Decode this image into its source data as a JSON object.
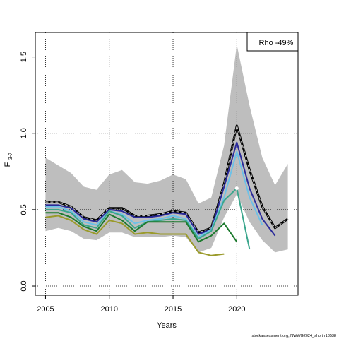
{
  "chart_data": {
    "type": "line",
    "xlabel": "Years",
    "ylabel_main": "F",
    "ylabel_sub": "3-7",
    "xlim": [
      2004.2,
      2024.8
    ],
    "ylim": [
      -0.06,
      1.66
    ],
    "xticks": [
      2005,
      2010,
      2015,
      2020
    ],
    "yticks": [
      0.0,
      0.5,
      1.0,
      1.5
    ],
    "ytick_labels": [
      "0.0",
      "0.5",
      "1.0",
      "1.5"
    ],
    "grid": true,
    "legend_text": "Rho -49%",
    "legend_position": "top-right",
    "footer": "stockassessment.org, NWWG2024_short r18538",
    "band": {
      "x": [
        2005,
        2006,
        2007,
        2008,
        2009,
        2010,
        2011,
        2012,
        2013,
        2014,
        2015,
        2016,
        2017,
        2018,
        2019,
        2020,
        2021,
        2022,
        2023,
        2024
      ],
      "upper": [
        0.84,
        0.79,
        0.74,
        0.65,
        0.63,
        0.73,
        0.76,
        0.68,
        0.67,
        0.69,
        0.73,
        0.7,
        0.54,
        0.58,
        0.92,
        1.58,
        1.18,
        0.84,
        0.66,
        0.8
      ],
      "lower": [
        0.36,
        0.38,
        0.36,
        0.31,
        0.3,
        0.35,
        0.35,
        0.32,
        0.32,
        0.32,
        0.33,
        0.32,
        0.22,
        0.25,
        0.45,
        0.6,
        0.42,
        0.3,
        0.22,
        0.24
      ],
      "color": "#bebebe"
    },
    "series": [
      {
        "color": "#000000",
        "width": 3,
        "x": [
          2005,
          2006,
          2007,
          2008,
          2009,
          2010,
          2011,
          2012,
          2013,
          2014,
          2015,
          2016,
          2017,
          2018,
          2019,
          2020,
          2021,
          2022,
          2023,
          2024
        ],
        "values": [
          0.55,
          0.55,
          0.52,
          0.45,
          0.43,
          0.51,
          0.51,
          0.46,
          0.46,
          0.47,
          0.49,
          0.48,
          0.35,
          0.38,
          0.67,
          1.05,
          0.76,
          0.52,
          0.38,
          0.44
        ]
      },
      {
        "color": "#bdbdbd",
        "width": 1.2,
        "dash": "4,3",
        "x": [
          2005,
          2006,
          2007,
          2008,
          2009,
          2010,
          2011,
          2012,
          2013,
          2014,
          2015,
          2016,
          2017,
          2018,
          2019,
          2020,
          2021,
          2022,
          2023,
          2024
        ],
        "values": [
          0.55,
          0.55,
          0.52,
          0.45,
          0.43,
          0.51,
          0.51,
          0.46,
          0.46,
          0.47,
          0.49,
          0.48,
          0.35,
          0.38,
          0.67,
          1.05,
          0.76,
          0.52,
          0.38,
          0.44
        ]
      },
      {
        "color": "#2b2b9a",
        "width": 2,
        "x": [
          2005,
          2006,
          2007,
          2008,
          2009,
          2010,
          2011,
          2012,
          2013,
          2014,
          2015,
          2016,
          2017,
          2018,
          2019,
          2020,
          2021,
          2022,
          2023
        ],
        "values": [
          0.53,
          0.53,
          0.51,
          0.44,
          0.42,
          0.5,
          0.49,
          0.45,
          0.45,
          0.46,
          0.48,
          0.47,
          0.34,
          0.37,
          0.65,
          0.94,
          0.64,
          0.44,
          0.33
        ]
      },
      {
        "color": "#6cc1e8",
        "width": 2,
        "x": [
          2005,
          2006,
          2007,
          2008,
          2009,
          2010,
          2011,
          2012,
          2013,
          2014,
          2015,
          2016,
          2017,
          2018,
          2019,
          2020,
          2021,
          2022
        ],
        "values": [
          0.52,
          0.52,
          0.49,
          0.42,
          0.4,
          0.49,
          0.47,
          0.41,
          0.43,
          0.44,
          0.46,
          0.44,
          0.32,
          0.37,
          0.58,
          0.88,
          0.58,
          0.4
        ]
      },
      {
        "color": "#3aa68c",
        "width": 2,
        "x": [
          2005,
          2006,
          2007,
          2008,
          2009,
          2010,
          2011,
          2012,
          2013,
          2014,
          2015,
          2016,
          2017,
          2018,
          2019,
          2020,
          2021
        ],
        "values": [
          0.5,
          0.5,
          0.48,
          0.4,
          0.38,
          0.49,
          0.46,
          0.38,
          0.42,
          0.43,
          0.44,
          0.43,
          0.31,
          0.36,
          0.56,
          0.64,
          0.24
        ]
      },
      {
        "color": "#1d7a2e",
        "width": 2,
        "x": [
          2005,
          2006,
          2007,
          2008,
          2009,
          2010,
          2011,
          2012,
          2013,
          2014,
          2015,
          2016,
          2017,
          2018,
          2019,
          2020
        ],
        "values": [
          0.48,
          0.48,
          0.45,
          0.39,
          0.36,
          0.47,
          0.43,
          0.36,
          0.42,
          0.42,
          0.42,
          0.42,
          0.29,
          0.33,
          0.41,
          0.29
        ]
      },
      {
        "color": "#9a9a2a",
        "width": 2,
        "x": [
          2005,
          2006,
          2007,
          2008,
          2009,
          2010,
          2011,
          2012,
          2013,
          2014,
          2015,
          2016,
          2017,
          2018,
          2019
        ],
        "values": [
          0.45,
          0.46,
          0.43,
          0.37,
          0.34,
          0.43,
          0.41,
          0.34,
          0.35,
          0.34,
          0.34,
          0.34,
          0.22,
          0.2,
          0.21
        ]
      }
    ],
    "points": [
      {
        "x": 2020,
        "y": 0.64,
        "color": "#ffffff"
      }
    ]
  }
}
